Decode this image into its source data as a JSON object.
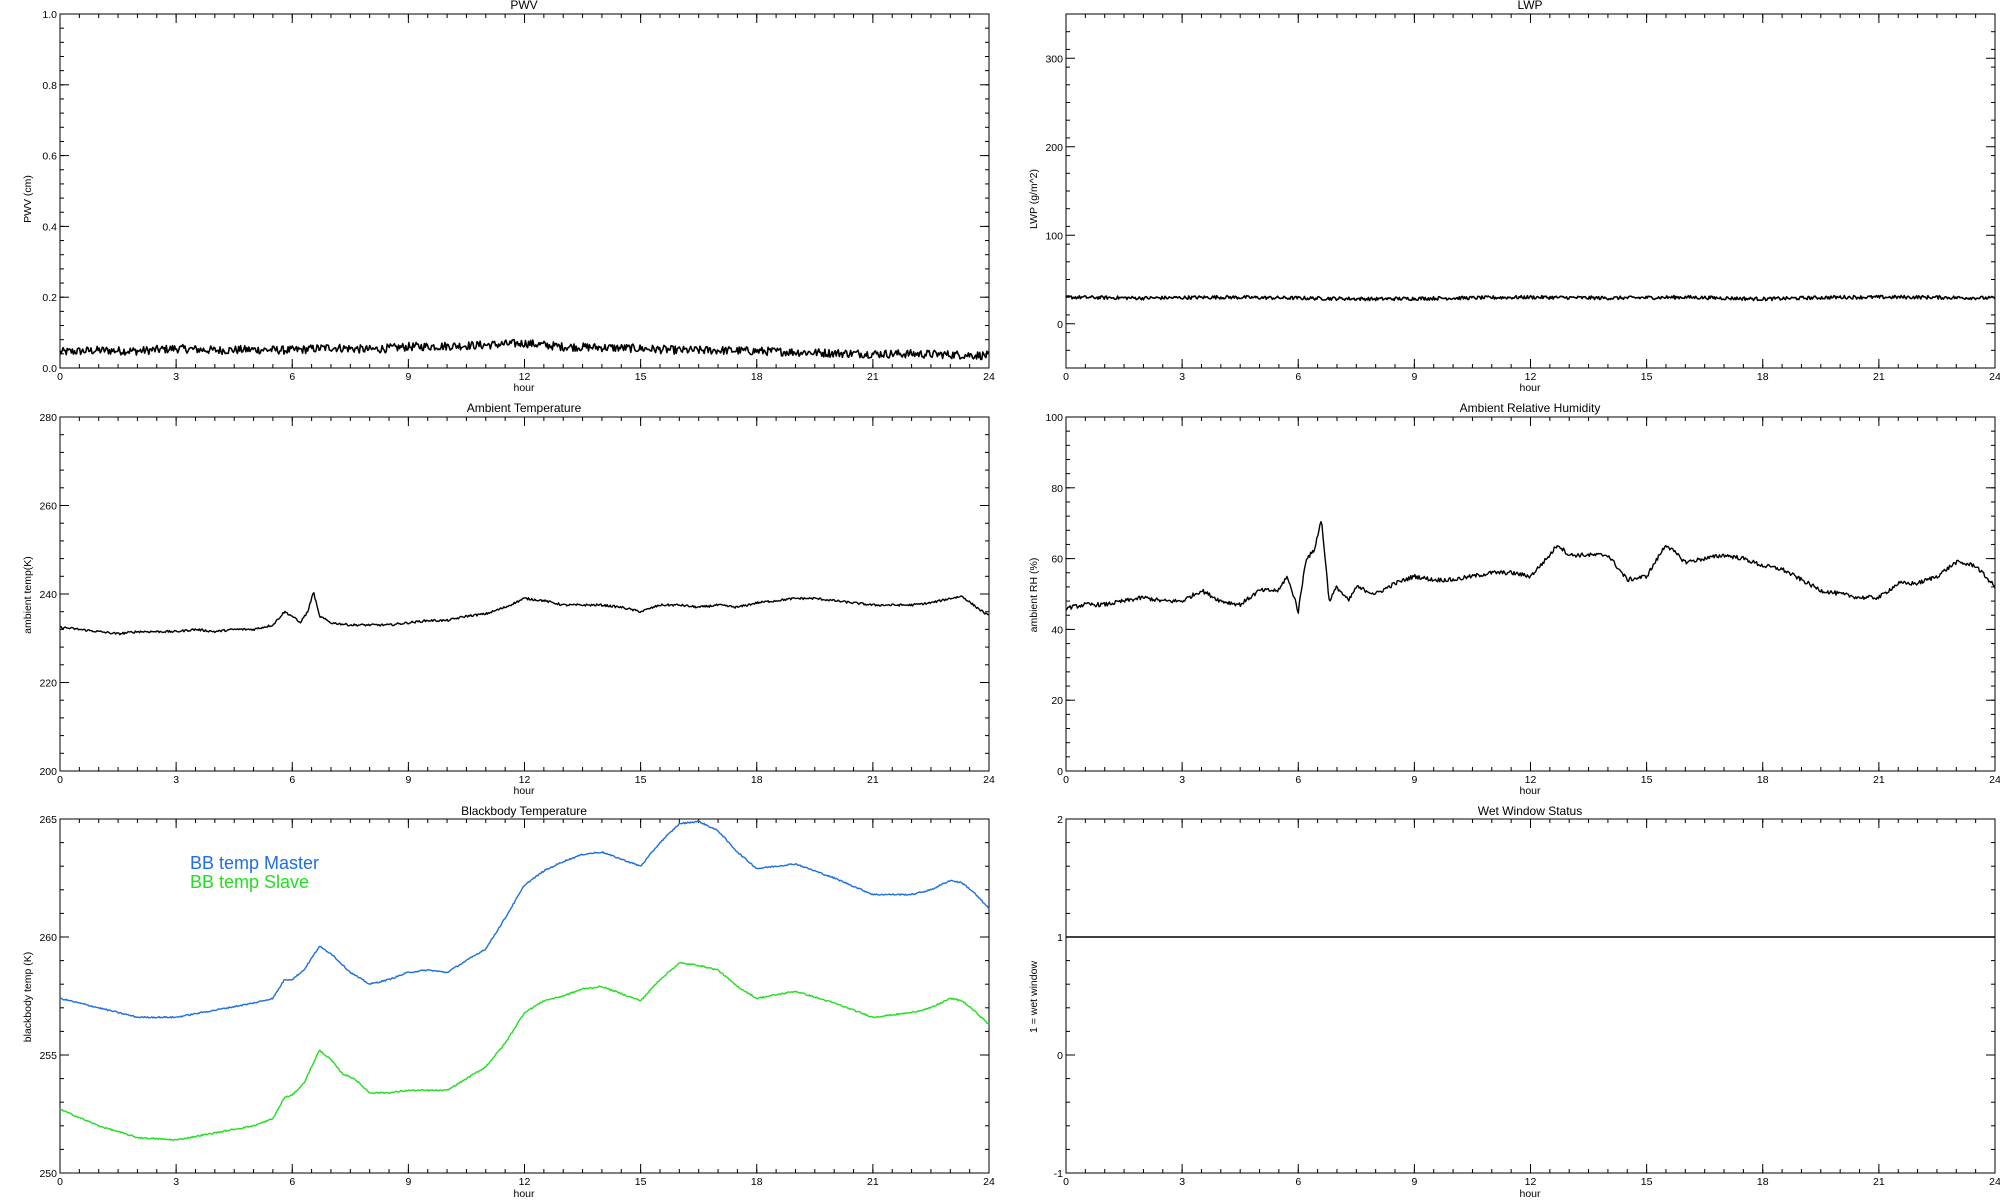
{
  "chart_data": [
    {
      "id": "pwv",
      "type": "line",
      "title": "PWV",
      "xlabel": "hour",
      "ylabel": "PWV (cm)",
      "xlim": [
        0,
        24
      ],
      "ylim": [
        0.0,
        1.0
      ],
      "xticks": [
        0,
        3,
        6,
        9,
        12,
        15,
        18,
        21,
        24
      ],
      "xtick_labels": [
        "0",
        "3",
        "6",
        "9",
        "12",
        "15",
        "18",
        "21",
        "24"
      ],
      "yticks": [
        0.0,
        0.2,
        0.4,
        0.6,
        0.8,
        1.0
      ],
      "ytick_labels": [
        "0.0",
        "0.2",
        "0.4",
        "0.6",
        "0.8",
        "1.0"
      ],
      "noise": 0.012,
      "series": [
        {
          "color": "#000000",
          "x": [
            0,
            1,
            2,
            3,
            4,
            5,
            6,
            7,
            8,
            9,
            10,
            11,
            12,
            13,
            14,
            15,
            16,
            17,
            18,
            19,
            20,
            21,
            22,
            23,
            24
          ],
          "values": [
            0.045,
            0.05,
            0.048,
            0.055,
            0.05,
            0.052,
            0.05,
            0.058,
            0.052,
            0.06,
            0.062,
            0.065,
            0.07,
            0.06,
            0.058,
            0.055,
            0.05,
            0.05,
            0.048,
            0.045,
            0.042,
            0.04,
            0.04,
            0.038,
            0.035
          ]
        }
      ]
    },
    {
      "id": "lwp",
      "type": "line",
      "title": "LWP",
      "xlabel": "hour",
      "ylabel": "LWP (g/m^2)",
      "xlim": [
        0,
        24
      ],
      "ylim": [
        -50,
        350
      ],
      "xticks": [
        0,
        3,
        6,
        9,
        12,
        15,
        18,
        21,
        24
      ],
      "xtick_labels": [
        "0",
        "3",
        "6",
        "9",
        "12",
        "15",
        "18",
        "21",
        "24"
      ],
      "yticks": [
        0,
        100,
        200,
        300
      ],
      "ytick_labels": [
        "0",
        "100",
        "200",
        "300"
      ],
      "noise": 2.0,
      "series": [
        {
          "color": "#000000",
          "x": [
            0,
            2,
            4,
            6,
            8,
            10,
            12,
            14,
            16,
            18,
            20,
            22,
            24
          ],
          "values": [
            30,
            29,
            30,
            29,
            28,
            29,
            30,
            29,
            30,
            28,
            30,
            30,
            29
          ]
        }
      ]
    },
    {
      "id": "ambient-temperature",
      "type": "line",
      "title": "Ambient Temperature",
      "xlabel": "hour",
      "ylabel": "ambient temp(K)",
      "xlim": [
        0,
        24
      ],
      "ylim": [
        200,
        280
      ],
      "xticks": [
        0,
        3,
        6,
        9,
        12,
        15,
        18,
        21,
        24
      ],
      "xtick_labels": [
        "0",
        "3",
        "6",
        "9",
        "12",
        "15",
        "18",
        "21",
        "24"
      ],
      "yticks": [
        200,
        220,
        240,
        260,
        280
      ],
      "ytick_labels": [
        "200",
        "220",
        "240",
        "260",
        "280"
      ],
      "noise": 0.25,
      "series": [
        {
          "color": "#000000",
          "x": [
            0,
            0.5,
            1,
            1.5,
            2,
            2.5,
            3,
            3.5,
            4,
            4.5,
            5,
            5.5,
            5.8,
            6.0,
            6.2,
            6.4,
            6.55,
            6.7,
            7.0,
            7.5,
            8,
            8.5,
            9,
            9.5,
            10,
            10.5,
            11,
            11.5,
            12,
            12.5,
            13,
            13.5,
            14,
            14.5,
            15,
            15.5,
            16,
            16.5,
            17,
            17.5,
            18,
            18.5,
            19,
            19.5,
            20,
            20.5,
            21,
            21.5,
            22,
            22.5,
            23,
            23.3,
            23.6,
            24
          ],
          "values": [
            232.5,
            232,
            231.5,
            231,
            231.5,
            231.5,
            231.5,
            232,
            231.5,
            232,
            232,
            233,
            236,
            235,
            233.5,
            236,
            240.5,
            235,
            233.5,
            233,
            233,
            233,
            233.5,
            234,
            234,
            235,
            235.5,
            237,
            239,
            238.5,
            237.5,
            237.5,
            237.5,
            237,
            236,
            237.5,
            237.5,
            237,
            237.5,
            237,
            238,
            238.5,
            239,
            239,
            238.5,
            238,
            237.5,
            237.5,
            237.5,
            238,
            239,
            239.5,
            237.5,
            235
          ]
        }
      ]
    },
    {
      "id": "ambient-relative-humidity",
      "type": "line",
      "title": "Ambient Relative Humidity",
      "xlabel": "hour",
      "ylabel": "ambient RH (%)",
      "xlim": [
        0,
        24
      ],
      "ylim": [
        0,
        100
      ],
      "xticks": [
        0,
        3,
        6,
        9,
        12,
        15,
        18,
        21,
        24
      ],
      "xtick_labels": [
        "0",
        "3",
        "6",
        "9",
        "12",
        "15",
        "18",
        "21",
        "24"
      ],
      "yticks": [
        0,
        20,
        40,
        60,
        80,
        100
      ],
      "ytick_labels": [
        "0",
        "20",
        "40",
        "60",
        "80",
        "100"
      ],
      "noise": 0.6,
      "series": [
        {
          "color": "#000000",
          "x": [
            0,
            0.5,
            1,
            1.5,
            2,
            2.5,
            3,
            3.5,
            4,
            4.5,
            5,
            5.5,
            5.7,
            5.9,
            6.0,
            6.2,
            6.4,
            6.6,
            6.8,
            7.0,
            7.3,
            7.5,
            8,
            8.5,
            9,
            9.5,
            10,
            10.5,
            11,
            11.5,
            12,
            12.5,
            12.7,
            13,
            13.5,
            14,
            14.5,
            15,
            15.5,
            16,
            16.5,
            17,
            17.5,
            18,
            18.5,
            19,
            19.5,
            20,
            20.5,
            21,
            21.5,
            22,
            22.5,
            23,
            23.5,
            24
          ],
          "values": [
            46,
            47,
            47,
            48,
            49,
            48,
            48,
            51,
            48,
            47,
            51,
            51,
            55,
            49,
            45,
            60,
            62,
            71,
            48,
            52,
            48,
            52,
            50,
            53,
            55,
            54,
            54,
            55,
            56,
            56,
            55,
            61,
            64,
            61,
            61,
            61,
            54,
            55,
            64,
            59,
            60,
            61,
            60,
            58,
            57,
            54,
            51,
            50,
            49,
            49,
            53,
            53,
            55,
            59,
            58,
            52
          ]
        }
      ]
    },
    {
      "id": "blackbody-temperature",
      "type": "line",
      "title": "Blackbody Temperature",
      "xlabel": "hour",
      "ylabel": "blackbody temp (K)",
      "xlim": [
        0,
        24
      ],
      "ylim": [
        250,
        265
      ],
      "xticks": [
        0,
        3,
        6,
        9,
        12,
        15,
        18,
        21,
        24
      ],
      "xtick_labels": [
        "0",
        "3",
        "6",
        "9",
        "12",
        "15",
        "18",
        "21",
        "24"
      ],
      "yticks": [
        250,
        255,
        260,
        265
      ],
      "ytick_labels": [
        "250",
        "255",
        "260",
        "265"
      ],
      "noise": 0.03,
      "legend": [
        "BB temp Master",
        "BB temp Slave"
      ],
      "legend_placement": "top-left",
      "series": [
        {
          "name": "BB temp Master",
          "color": "#1e6fdc",
          "x": [
            0,
            1,
            2,
            3,
            4,
            5,
            5.5,
            5.8,
            6.0,
            6.3,
            6.7,
            7.0,
            7.5,
            8,
            8.5,
            9,
            9.5,
            10,
            10.5,
            11,
            11.5,
            12,
            12.5,
            13,
            13.5,
            14,
            14.5,
            15,
            15.5,
            16,
            16.5,
            17,
            17.5,
            18,
            19,
            20,
            21,
            22,
            22.5,
            23,
            23.3,
            23.6,
            24
          ],
          "values": [
            257.4,
            257.0,
            256.6,
            256.6,
            256.9,
            257.2,
            257.4,
            258.2,
            258.2,
            258.6,
            259.6,
            259.3,
            258.5,
            258.0,
            258.2,
            258.5,
            258.6,
            258.5,
            259.0,
            259.5,
            260.8,
            262.2,
            262.8,
            263.2,
            263.5,
            263.6,
            263.3,
            263.0,
            264.0,
            264.8,
            264.9,
            264.5,
            263.6,
            262.9,
            263.1,
            262.5,
            261.8,
            261.8,
            262.0,
            262.4,
            262.3,
            261.9,
            261.2
          ]
        },
        {
          "name": "BB temp Slave",
          "color": "#22dd22",
          "x": [
            0,
            1,
            2,
            3,
            4,
            5,
            5.5,
            5.8,
            6.0,
            6.3,
            6.7,
            7.0,
            7.3,
            7.6,
            8,
            8.5,
            9,
            9.5,
            10,
            10.5,
            11,
            11.5,
            12,
            12.5,
            13,
            13.5,
            14,
            14.5,
            15,
            15.5,
            16,
            16.5,
            17,
            17.5,
            18,
            19,
            20,
            21,
            22,
            22.5,
            23,
            23.3,
            23.6,
            24
          ],
          "values": [
            252.7,
            252.0,
            251.5,
            251.4,
            251.7,
            252.0,
            252.3,
            253.2,
            253.3,
            253.8,
            255.2,
            254.8,
            254.2,
            254.0,
            253.4,
            253.4,
            253.5,
            253.5,
            253.5,
            254.0,
            254.5,
            255.5,
            256.8,
            257.3,
            257.5,
            257.8,
            257.9,
            257.6,
            257.3,
            258.2,
            258.9,
            258.8,
            258.6,
            257.9,
            257.4,
            257.7,
            257.2,
            256.6,
            256.8,
            257.0,
            257.4,
            257.3,
            256.9,
            256.3
          ]
        }
      ]
    },
    {
      "id": "wet-window-status",
      "type": "line",
      "title": "Wet Window Status",
      "xlabel": "hour",
      "ylabel": "1 = wet window",
      "xlim": [
        0,
        24
      ],
      "ylim": [
        -1,
        2
      ],
      "xticks": [
        0,
        3,
        6,
        9,
        12,
        15,
        18,
        21,
        24
      ],
      "xtick_labels": [
        "0",
        "3",
        "6",
        "9",
        "12",
        "15",
        "18",
        "21",
        "24"
      ],
      "yticks": [
        -1,
        0,
        1,
        2
      ],
      "ytick_labels": [
        "-1",
        "0",
        "1",
        "2"
      ],
      "noise": 0,
      "series": [
        {
          "color": "#000000",
          "x": [
            0,
            24
          ],
          "values": [
            1,
            1
          ]
        }
      ]
    }
  ]
}
